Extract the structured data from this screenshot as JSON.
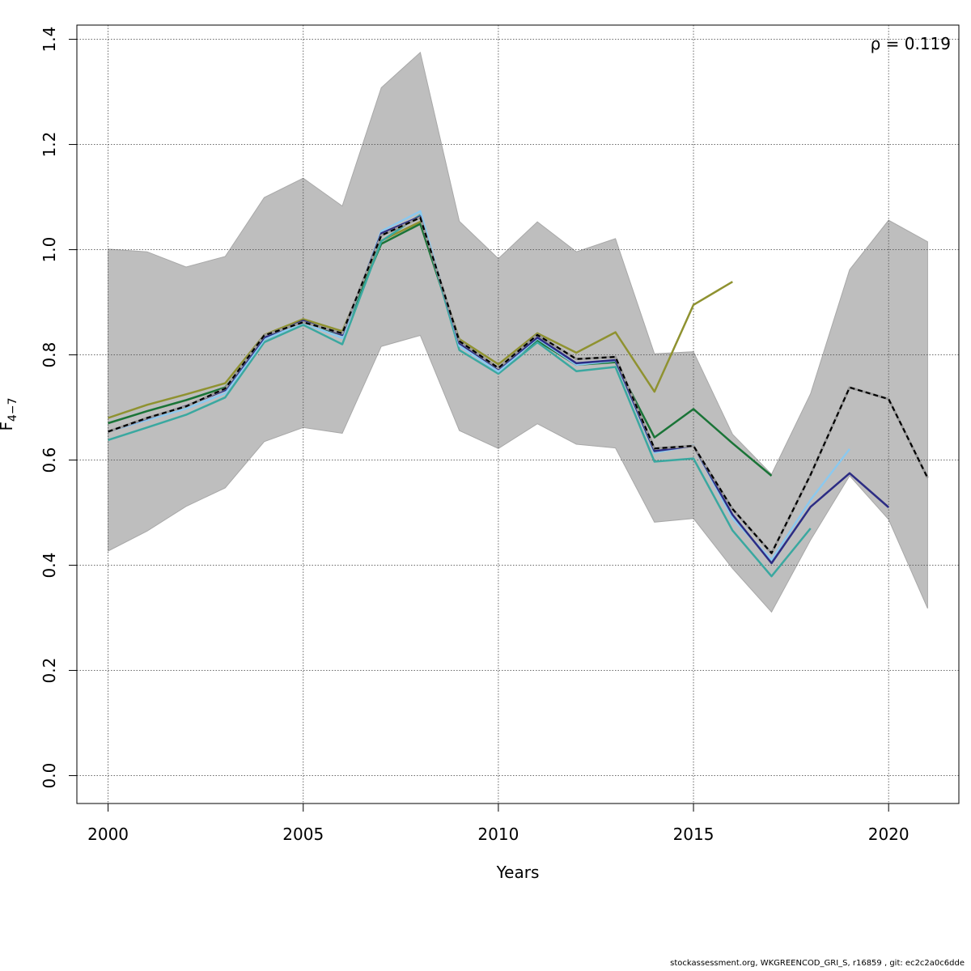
{
  "chart_data": {
    "type": "line",
    "xlabel": "Years",
    "ylabel_main": "F",
    "ylabel_sub": "4−7",
    "annotation": "ρ = 0.119",
    "xlim": [
      1999.2,
      2021.8
    ],
    "ylim": [
      -0.053,
      1.427
    ],
    "xticks": [
      2000,
      2005,
      2010,
      2015,
      2020
    ],
    "yticks": [
      0.0,
      0.2,
      0.4,
      0.6,
      0.8,
      1.0,
      1.2,
      1.4
    ],
    "ytick_labels": [
      "0.0",
      "0.2",
      "0.4",
      "0.6",
      "0.8",
      "1.0",
      "1.2",
      "1.4"
    ],
    "grid": true,
    "band": {
      "color": "#bebebe",
      "x": [
        2000,
        2001,
        2002,
        2003,
        2004,
        2005,
        2006,
        2007,
        2008,
        2009,
        2010,
        2011,
        2012,
        2013,
        2014,
        2015,
        2016,
        2017,
        2018,
        2019,
        2020,
        2021
      ],
      "upper": [
        1.001,
        0.996,
        0.967,
        0.987,
        1.099,
        1.136,
        1.083,
        1.308,
        1.375,
        1.054,
        0.983,
        1.053,
        0.996,
        1.021,
        0.802,
        0.806,
        0.649,
        0.573,
        0.726,
        0.962,
        1.056,
        1.015
      ],
      "lower": [
        0.427,
        0.465,
        0.512,
        0.547,
        0.635,
        0.662,
        0.651,
        0.816,
        0.837,
        0.656,
        0.622,
        0.669,
        0.63,
        0.623,
        0.482,
        0.489,
        0.394,
        0.311,
        0.448,
        0.57,
        0.487,
        0.318
      ]
    },
    "series": [
      {
        "color": "#000000",
        "dashed": true,
        "x": [
          2000,
          2001,
          2002,
          2003,
          2004,
          2005,
          2006,
          2007,
          2008,
          2009,
          2010,
          2011,
          2012,
          2013,
          2014,
          2015,
          2016,
          2017,
          2018,
          2019,
          2020,
          2021
        ],
        "y": [
          0.654,
          0.68,
          0.702,
          0.736,
          0.837,
          0.862,
          0.841,
          1.027,
          1.061,
          0.826,
          0.775,
          0.838,
          0.792,
          0.796,
          0.622,
          0.627,
          0.507,
          0.423,
          0.572,
          0.738,
          0.716,
          0.566
        ]
      },
      {
        "color": "#2c2c84",
        "dashed": false,
        "x": [
          2000,
          2001,
          2002,
          2003,
          2004,
          2005,
          2006,
          2007,
          2008,
          2009,
          2010,
          2011,
          2012,
          2013,
          2014,
          2015,
          2016,
          2017,
          2018,
          2019,
          2020
        ],
        "y": [
          0.654,
          0.679,
          0.703,
          0.733,
          0.833,
          0.865,
          0.838,
          1.031,
          1.063,
          0.822,
          0.773,
          0.833,
          0.784,
          0.79,
          0.617,
          0.627,
          0.496,
          0.404,
          0.511,
          0.575,
          0.51
        ]
      },
      {
        "color": "#8bc9ef",
        "dashed": false,
        "x": [
          2000,
          2001,
          2002,
          2003,
          2004,
          2005,
          2006,
          2007,
          2008,
          2009,
          2010,
          2011,
          2012,
          2013,
          2014,
          2015,
          2016,
          2017,
          2018,
          2019
        ],
        "y": [
          0.654,
          0.676,
          0.698,
          0.727,
          0.829,
          0.861,
          0.832,
          1.035,
          1.073,
          0.817,
          0.768,
          0.831,
          0.781,
          0.789,
          0.614,
          0.628,
          0.489,
          0.41,
          0.524,
          0.621
        ]
      },
      {
        "color": "#3aa8a0",
        "dashed": false,
        "x": [
          2000,
          2001,
          2002,
          2003,
          2004,
          2005,
          2006,
          2007,
          2008,
          2009,
          2010,
          2011,
          2012,
          2013,
          2014,
          2015,
          2016,
          2017,
          2018
        ],
        "y": [
          0.638,
          0.662,
          0.686,
          0.719,
          0.824,
          0.857,
          0.82,
          1.016,
          1.066,
          0.809,
          0.764,
          0.824,
          0.769,
          0.777,
          0.597,
          0.603,
          0.466,
          0.379,
          0.47
        ]
      },
      {
        "color": "#1a7437",
        "dashed": false,
        "x": [
          2000,
          2001,
          2002,
          2003,
          2004,
          2005,
          2006,
          2007,
          2008,
          2009,
          2010,
          2011,
          2012,
          2013,
          2014,
          2015,
          2016,
          2017
        ],
        "y": [
          0.67,
          0.693,
          0.714,
          0.738,
          0.829,
          0.862,
          0.838,
          1.011,
          1.049,
          0.823,
          0.774,
          0.827,
          0.781,
          0.786,
          0.643,
          0.697,
          0.632,
          0.57
        ]
      },
      {
        "color": "#8f9230",
        "dashed": false,
        "x": [
          2000,
          2001,
          2002,
          2003,
          2004,
          2005,
          2006,
          2007,
          2008,
          2009,
          2010,
          2011,
          2012,
          2013,
          2014,
          2015,
          2016
        ],
        "y": [
          0.68,
          0.705,
          0.725,
          0.746,
          0.838,
          0.868,
          0.845,
          1.017,
          1.053,
          0.83,
          0.782,
          0.841,
          0.804,
          0.843,
          0.73,
          0.895,
          0.939
        ]
      }
    ]
  },
  "footer": "stockassessment.org, WKGREENCOD_GRI_S, r16859 , git: ec2c2a0c6dde"
}
